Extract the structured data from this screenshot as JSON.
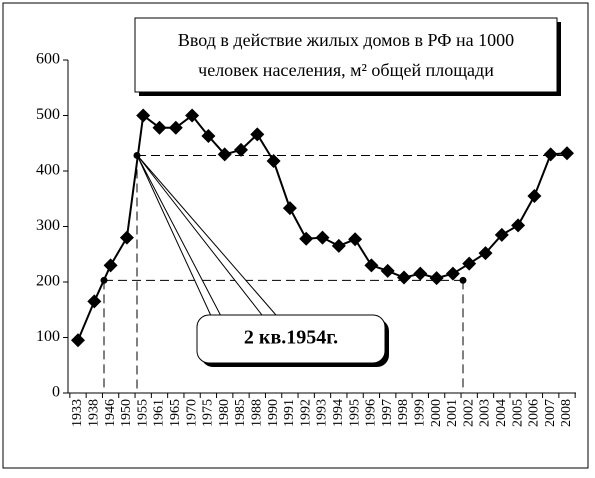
{
  "chart_data": {
    "type": "line",
    "title_lines": [
      "Ввод в действие жилых домов в РФ на 1000",
      "человек населения, м² общей площади"
    ],
    "annotation": "2 кв.1954г.",
    "categories": [
      "1933",
      "1938",
      "1946",
      "1950",
      "1955",
      "1961",
      "1965",
      "1970",
      "1975",
      "1980",
      "1985",
      "1988",
      "1990",
      "1991",
      "1992",
      "1993",
      "1994",
      "1995",
      "1996",
      "1997",
      "1998",
      "1999",
      "2000",
      "2001",
      "2002",
      "2003",
      "2004",
      "2005",
      "2006",
      "2007",
      "2008"
    ],
    "values": [
      95,
      165,
      230,
      280,
      500,
      478,
      478,
      500,
      463,
      430,
      438,
      466,
      418,
      333,
      278,
      280,
      265,
      277,
      230,
      220,
      208,
      215,
      207,
      215,
      233,
      252,
      285,
      302,
      355,
      430,
      432
    ],
    "color": "#000000",
    "reference_lines": [
      428,
      203
    ],
    "ylim": [
      0,
      600
    ],
    "yticks": [
      0,
      100,
      200,
      300,
      400,
      500,
      600
    ],
    "grid": false
  }
}
